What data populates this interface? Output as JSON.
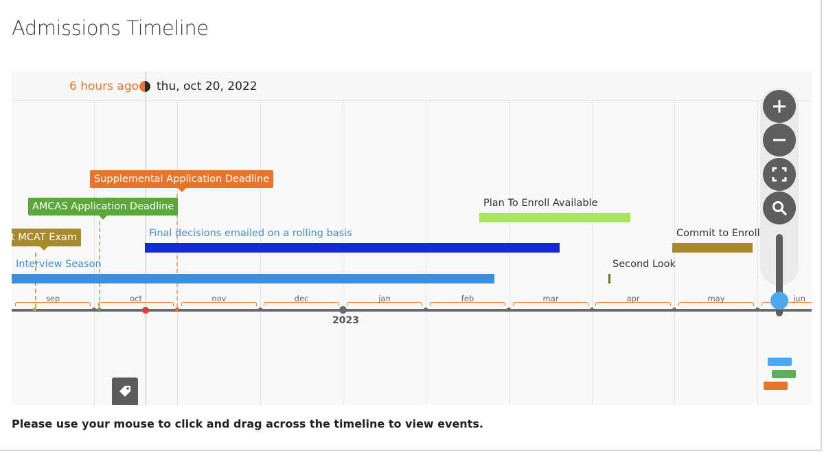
{
  "page": {
    "title": "Admissions Timeline",
    "instructions": "Please use your mouse to click and drag across the timeline to view events."
  },
  "timeline": {
    "now": {
      "relative": "6 hours ago",
      "date": "thu, oct 20, 2022"
    },
    "year_label": "2023",
    "months": [
      "sep",
      "oct",
      "nov",
      "dec",
      "jan",
      "feb",
      "mar",
      "apr",
      "may",
      "jun"
    ],
    "milestones": [
      {
        "label": "MCAT Exam",
        "visible_text": "t MCAT Exam",
        "color": "#a98a2a"
      },
      {
        "label": "AMCAS Application Deadline",
        "color": "#5aa838"
      },
      {
        "label": "Supplemental Application Deadline",
        "color": "#e8742a"
      }
    ],
    "spans": [
      {
        "label": "Interview Season",
        "color": "#3f8fd8"
      },
      {
        "label": "Final decisions emailed on a rolling basis",
        "color": "#1428d4",
        "label_color": "#3f8fd8"
      },
      {
        "label": "Plan To Enroll Available",
        "color": "#a9e55a"
      },
      {
        "label": "Commit to Enroll",
        "color": "#a9892a"
      },
      {
        "label": "Second Look",
        "color": "#5d7a2a"
      }
    ],
    "legend_colors": [
      "#4ea8f0",
      "#5bb05a",
      "#e8742a"
    ],
    "zoom_controls": [
      "zoom-in",
      "zoom-out",
      "fit-to-screen",
      "search"
    ]
  }
}
